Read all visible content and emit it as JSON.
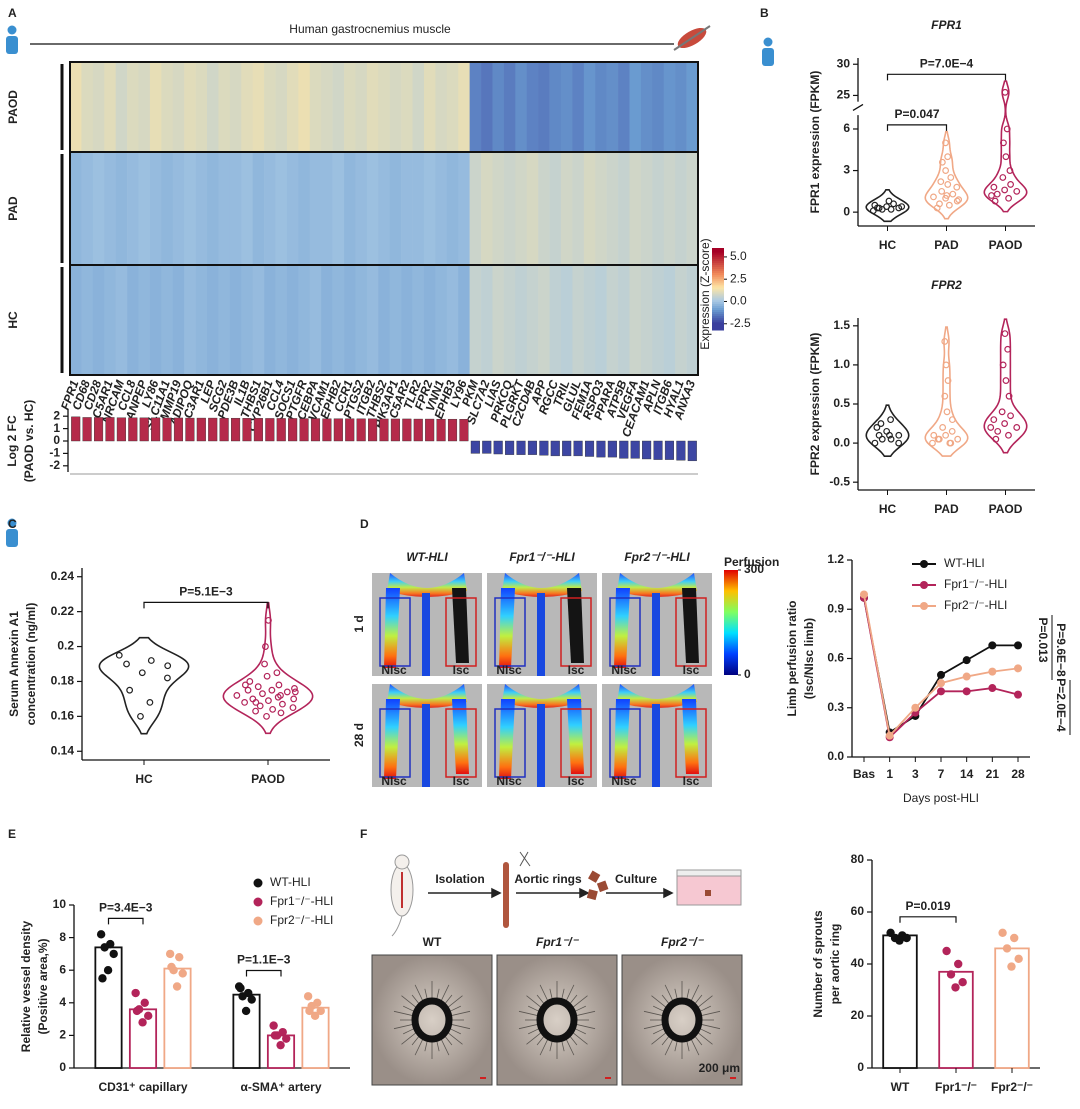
{
  "figure": {
    "panel_labels": [
      "A",
      "B",
      "C",
      "D",
      "E",
      "F"
    ],
    "perfusion_images": {
      "columns": [
        "WT-HLI",
        "Fpr1⁻/⁻-HLI",
        "Fpr2⁻/⁻-HLI"
      ],
      "rows": [
        "1 d",
        "28 d"
      ],
      "roi": [
        "NIsc",
        "Isc"
      ],
      "colorbar_title": "Perfusion",
      "colorbar_ticks": [
        0,
        300
      ]
    },
    "aortic_workflow": {
      "steps": [
        "Isolation",
        "Aortic rings",
        "Culture"
      ]
    },
    "aortic_images": {
      "labels": [
        "WT",
        "Fpr1⁻/⁻",
        "Fpr2⁻/⁻"
      ],
      "scale_bar": "200 μm"
    }
  },
  "chart_data": [
    {
      "type": "heatmap",
      "title": "Human gastrocnemius muscle",
      "rows": [
        "PAOD",
        "PAD",
        "HC"
      ],
      "columns": [
        "FPR1",
        "CD68",
        "CD28",
        "C5AR1",
        "NRCAM",
        "CCL8",
        "ANPEP",
        "LY86",
        "SLC11A1",
        "MMP19",
        "ADIPOQ",
        "C3AR1",
        "LEP",
        "SCG2",
        "PDE3B",
        "IL1B",
        "THBS1",
        "CYP26B1",
        "CCL4",
        "SOCS1",
        "PTGFR",
        "CEBPA",
        "VCAM1",
        "EPHB2",
        "CCR1",
        "PTGS2",
        "ITGB2",
        "THBS2",
        "PIK3AP1",
        "C5AR2",
        "TLR2",
        "FPR2",
        "VNN1",
        "EPHB3",
        "LY96",
        "PKM",
        "SLC7A2",
        "LIAS",
        "PRKCQ",
        "PLGRKT",
        "C2CD4B",
        "APP",
        "RGCC",
        "TRIL",
        "GLUL",
        "FEM1A",
        "RSPO3",
        "PPARA",
        "ATP5B",
        "VEGFA",
        "CEACAM1",
        "APLN",
        "ITGB6",
        "HYAL1",
        "ANXA3"
      ],
      "highlight": [
        0
      ],
      "highlight_color": "#c0282d",
      "values": [
        [
          1.2,
          0.9,
          0.8,
          1.0,
          0.7,
          0.9,
          0.8,
          1.1,
          0.9,
          0.8,
          1.0,
          0.9,
          0.7,
          0.9,
          0.8,
          1.0,
          1.1,
          0.9,
          0.8,
          1.0,
          1.2,
          0.9,
          0.8,
          0.7,
          0.9,
          0.8,
          1.0,
          0.9,
          0.8,
          0.9,
          0.7,
          1.0,
          0.8,
          0.9,
          1.1,
          -1.4,
          -1.6,
          -1.3,
          -1.5,
          -1.2,
          -1.4,
          -1.5,
          -1.3,
          -1.2,
          -1.4,
          -1.1,
          -1.3,
          -1.2,
          -1.4,
          -1.0,
          -1.2,
          -1.3,
          -1.1,
          -1.2,
          -1.0
        ],
        [
          -0.4,
          -0.3,
          -0.2,
          -0.3,
          -0.4,
          -0.3,
          -0.2,
          -0.3,
          -0.4,
          -0.3,
          -0.2,
          -0.3,
          -0.4,
          -0.3,
          -0.3,
          -0.2,
          -0.4,
          -0.3,
          -0.2,
          -0.3,
          -0.4,
          -0.3,
          -0.3,
          -0.2,
          -0.4,
          -0.3,
          -0.2,
          -0.3,
          -0.4,
          -0.3,
          -0.3,
          -0.2,
          -0.3,
          -0.4,
          -0.3,
          0.6,
          0.8,
          0.7,
          0.6,
          0.7,
          0.8,
          0.6,
          0.5,
          0.7,
          0.6,
          0.8,
          0.7,
          0.6,
          0.5,
          0.7,
          0.6,
          0.5,
          0.6,
          0.5,
          0.6
        ],
        [
          -0.5,
          -0.4,
          -0.5,
          -0.4,
          -0.3,
          -0.5,
          -0.4,
          -0.5,
          -0.4,
          -0.5,
          -0.3,
          -0.4,
          -0.5,
          -0.4,
          -0.5,
          -0.4,
          -0.3,
          -0.5,
          -0.4,
          -0.5,
          -0.4,
          -0.3,
          -0.5,
          -0.4,
          -0.5,
          -0.4,
          -0.3,
          -0.5,
          -0.4,
          -0.5,
          -0.4,
          -0.5,
          -0.4,
          -0.3,
          -0.5,
          0.5,
          0.4,
          0.6,
          0.5,
          0.4,
          0.5,
          0.6,
          0.4,
          0.3,
          0.5,
          0.4,
          0.3,
          0.5,
          0.4,
          0.6,
          0.5,
          0.4,
          0.3,
          0.5,
          0.4
        ]
      ],
      "colorbar": {
        "label": "Expression (Z-score)",
        "clim": [
          -3.2,
          6
        ],
        "ticks": [
          {
            "value": 5,
            "label": "5.0"
          },
          2.5,
          {
            "value": 0,
            "label": "0.0"
          },
          -2.5
        ]
      },
      "log2fc": {
        "y_label": [
          "Log 2 FC",
          "(PAOD vs. HC)"
        ],
        "ylim": [
          -2.5,
          2.5
        ],
        "yticks": [
          2,
          1,
          0,
          -1,
          -2
        ],
        "colors": {
          "positive": "#b52a4a",
          "negative": "#3d46a3"
        },
        "values": [
          1.95,
          1.9,
          1.9,
          1.9,
          1.88,
          1.88,
          1.87,
          1.87,
          1.86,
          1.86,
          1.85,
          1.85,
          1.85,
          1.84,
          1.84,
          1.83,
          1.83,
          1.82,
          1.82,
          1.82,
          1.81,
          1.81,
          1.8,
          1.8,
          1.8,
          1.79,
          1.79,
          1.78,
          1.78,
          1.78,
          1.77,
          1.77,
          1.76,
          1.76,
          1.75,
          -1.0,
          -1.0,
          -1.05,
          -1.1,
          -1.1,
          -1.1,
          -1.15,
          -1.2,
          -1.2,
          -1.2,
          -1.25,
          -1.3,
          -1.3,
          -1.4,
          -1.4,
          -1.45,
          -1.5,
          -1.5,
          -1.55,
          -1.6
        ]
      }
    },
    {
      "type": "violin",
      "title": "FPR1",
      "y_label": [
        "FPR1 expression (FPKM)"
      ],
      "categories": [
        "HC",
        "PAD",
        "PAOD"
      ],
      "colors": [
        "#222222",
        "#f0a886",
        "#b3245a"
      ],
      "ylim": [
        -1,
        31
      ],
      "axis_break": [
        7,
        24
      ],
      "yticks": [
        0,
        3,
        6,
        25,
        30
      ],
      "points": [
        [
          0.1,
          0.2,
          0.3,
          0.3,
          0.4,
          0.5,
          0.6,
          0.2,
          0.4,
          0.8,
          0.3
        ],
        [
          0.3,
          0.5,
          0.6,
          0.8,
          1.0,
          1.1,
          1.3,
          1.5,
          1.8,
          2.0,
          2.2,
          2.5,
          3.0,
          3.6,
          4.0,
          5.0,
          0.9,
          1.2
        ],
        [
          0.8,
          1.0,
          1.3,
          1.5,
          1.6,
          1.8,
          2.0,
          2.5,
          3.0,
          4.0,
          5.0,
          6.0,
          25.5,
          1.2
        ]
      ],
      "annotations": [
        {
          "text": "P=0.047",
          "between": [
            0,
            1
          ]
        },
        {
          "text": "P=7.0E−4",
          "between": [
            0,
            2
          ]
        }
      ]
    },
    {
      "type": "violin",
      "title": "FPR2",
      "y_label": [
        "FPR2 expression (FPKM)"
      ],
      "categories": [
        "HC",
        "PAD",
        "PAOD"
      ],
      "colors": [
        "#222222",
        "#f0a886",
        "#b3245a"
      ],
      "ylim": [
        -0.6,
        1.6
      ],
      "yticks": [
        -0.5,
        {
          "value": 0,
          "label": "0.0"
        },
        0.5,
        {
          "value": 1,
          "label": "1.0"
        },
        1.5
      ],
      "points": [
        [
          0.0,
          0.05,
          0.1,
          0.1,
          0.15,
          0.2,
          0.3,
          0.05,
          0.0,
          0.1,
          0.25
        ],
        [
          0.0,
          0.0,
          0.05,
          0.05,
          0.1,
          0.1,
          0.15,
          0.2,
          0.3,
          0.4,
          0.6,
          0.8,
          1.0,
          1.3,
          0.0,
          0.05
        ],
        [
          0.05,
          0.1,
          0.15,
          0.2,
          0.25,
          0.3,
          0.35,
          0.4,
          0.6,
          0.8,
          1.0,
          1.2,
          1.4,
          0.2
        ]
      ]
    },
    {
      "type": "violin",
      "y_label": [
        "Serum Annexin A1",
        "concentration (ng/ml)"
      ],
      "categories": [
        "HC",
        "PAOD"
      ],
      "colors": [
        "#222222",
        "#b3245a"
      ],
      "ylim": [
        0.135,
        0.245
      ],
      "yticks": [
        0.14,
        0.16,
        0.18,
        0.2,
        0.22,
        0.24
      ],
      "points": [
        [
          0.195,
          0.192,
          0.19,
          0.189,
          0.185,
          0.175,
          0.168,
          0.16,
          0.182
        ],
        [
          0.2,
          0.215,
          0.19,
          0.185,
          0.183,
          0.18,
          0.178,
          0.177,
          0.176,
          0.175,
          0.175,
          0.174,
          0.173,
          0.172,
          0.171,
          0.17,
          0.17,
          0.169,
          0.168,
          0.167,
          0.166,
          0.165,
          0.164,
          0.163,
          0.162,
          0.16,
          0.178,
          0.172,
          0.168,
          0.174
        ]
      ],
      "annotations": [
        {
          "text": "P=5.1E−3",
          "between": [
            0,
            1
          ]
        }
      ]
    },
    {
      "type": "line",
      "y_label": [
        "Limb perfusion ratio",
        "(Isc/NIsc limb)"
      ],
      "x_label": "Days post-HLI",
      "categories": [
        "Bas",
        "1",
        "3",
        "7",
        "14",
        "21",
        "28"
      ],
      "ylim": [
        0,
        1.2
      ],
      "yticks": [
        {
          "value": 0,
          "label": "0.0"
        },
        0.3,
        0.6,
        0.9,
        1.2
      ],
      "legend": "upper right",
      "series": [
        {
          "name": "WT-HLI",
          "color": "#111111",
          "values": [
            0.97,
            0.15,
            0.25,
            0.5,
            0.59,
            0.68,
            0.68
          ]
        },
        {
          "name": "Fpr1⁻/⁻-HLI",
          "color": "#b3245a",
          "values": [
            0.97,
            0.12,
            0.27,
            0.4,
            0.4,
            0.42,
            0.38
          ]
        },
        {
          "name": "Fpr2⁻/⁻-HLI",
          "color": "#f0a886",
          "values": [
            0.99,
            0.13,
            0.3,
            0.45,
            0.49,
            0.52,
            0.54
          ]
        }
      ],
      "annotations": [
        {
          "text": "P=0.013"
        },
        {
          "text": "P=9.6E−8"
        },
        {
          "text": "P=2.0E−4"
        }
      ]
    },
    {
      "type": "bar",
      "y_label": [
        "Relative vessel density",
        "(Positive area,%)"
      ],
      "categories": [
        "CD31⁺ capillary",
        "α-SMA⁺ artery"
      ],
      "ylim": [
        0,
        10
      ],
      "yticks": [
        0,
        2,
        4,
        6,
        8,
        10
      ],
      "legend": "upper right",
      "series": [
        {
          "name": "WT-HLI",
          "color": "#111111",
          "values": [
            7.4,
            4.5
          ],
          "points": [
            [
              8.2,
              7.6,
              7.4,
              7.0,
              6.0,
              5.5
            ],
            [
              5.0,
              4.6,
              4.4,
              4.2,
              3.5,
              4.9
            ]
          ]
        },
        {
          "name": "Fpr1⁻/⁻-HLI",
          "color": "#b3245a",
          "values": [
            3.6,
            2.0
          ],
          "points": [
            [
              4.6,
              4.0,
              3.6,
              3.2,
              2.8,
              3.5
            ],
            [
              2.6,
              2.2,
              2.0,
              1.8,
              1.4,
              2.0
            ]
          ]
        },
        {
          "name": "Fpr2⁻/⁻-HLI",
          "color": "#f0a886",
          "values": [
            6.1,
            3.7
          ],
          "points": [
            [
              7.0,
              6.8,
              6.0,
              5.8,
              5.0,
              6.2
            ],
            [
              4.4,
              4.0,
              3.8,
              3.5,
              3.2,
              3.5
            ]
          ]
        }
      ],
      "annotations": [
        {
          "text": "P=3.4E−3",
          "group": 0,
          "between": [
            0,
            1
          ]
        },
        {
          "text": "P=1.1E−3",
          "group": 1,
          "between": [
            0,
            1
          ]
        }
      ]
    },
    {
      "type": "bar",
      "y_label": [
        "Number of sprouts",
        "per aortic ring"
      ],
      "categories": [
        "WT",
        "Fpr1⁻/⁻",
        "Fpr2⁻/⁻"
      ],
      "colors": [
        "#111111",
        "#b3245a",
        "#f0a886"
      ],
      "values": [
        51,
        37,
        46
      ],
      "points": [
        [
          52,
          51,
          50,
          50,
          49
        ],
        [
          45,
          40,
          36,
          33,
          31
        ],
        [
          52,
          50,
          46,
          42,
          39
        ]
      ],
      "ylim": [
        0,
        80
      ],
      "yticks": [
        0,
        20,
        40,
        60,
        80
      ],
      "annotations": [
        {
          "text": "P=0.019",
          "between": [
            0,
            1
          ]
        }
      ]
    }
  ]
}
